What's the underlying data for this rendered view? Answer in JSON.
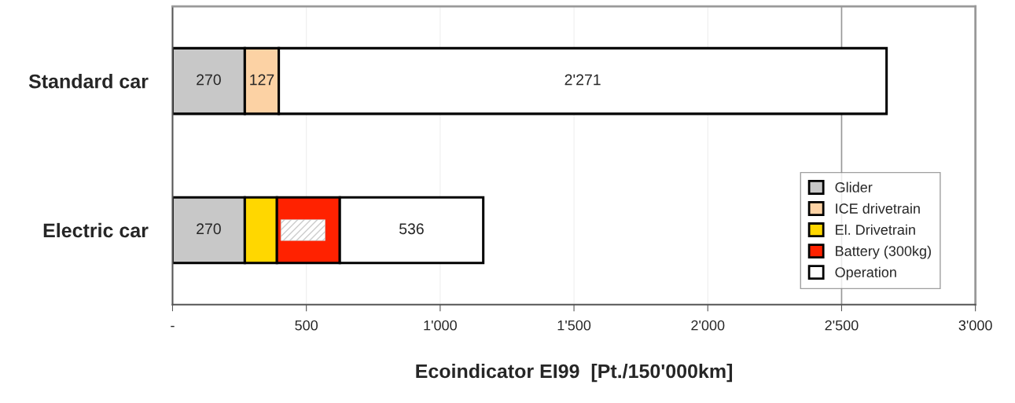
{
  "chart_data": {
    "type": "bar",
    "orientation": "horizontal",
    "stacked": true,
    "xlabel": "Ecoindicator EI99  [Pt./150'000km]",
    "categories": [
      "Standard car",
      "Electric car"
    ],
    "series": [
      {
        "name": "Glider",
        "color": "#c8c8c8",
        "values": [
          270,
          270
        ],
        "value_labels": [
          "270",
          "270"
        ]
      },
      {
        "name": "ICE drivetrain",
        "color": "#fcd2a4",
        "values": [
          127,
          null
        ],
        "value_labels": [
          "127",
          null
        ]
      },
      {
        "name": "El. Drivetrain",
        "color": "#ffd700",
        "values": [
          null,
          120
        ],
        "value_labels": [
          null,
          null
        ]
      },
      {
        "name": "Battery (300kg)",
        "color": "#ff2200",
        "values": [
          null,
          235
        ],
        "value_labels": [
          null,
          null
        ]
      },
      {
        "name": "Operation",
        "color": "#ffffff",
        "values": [
          2271,
          536
        ],
        "value_labels": [
          "2'271",
          "536"
        ]
      }
    ],
    "xlim": [
      0,
      3000
    ],
    "xticks": [
      {
        "value": 0,
        "label": "-"
      },
      500,
      {
        "value": 1000,
        "label": "1'000"
      },
      {
        "value": 1500,
        "label": "1'500"
      },
      {
        "value": 2000,
        "label": "2'000"
      },
      {
        "value": 2500,
        "label": "2'500"
      },
      {
        "value": 3000,
        "label": "3'000"
      }
    ],
    "ref_lines": [
      {
        "axis": "x",
        "value": 2500,
        "color": "#999999"
      }
    ],
    "grid": "x",
    "legend": "bottom right"
  }
}
